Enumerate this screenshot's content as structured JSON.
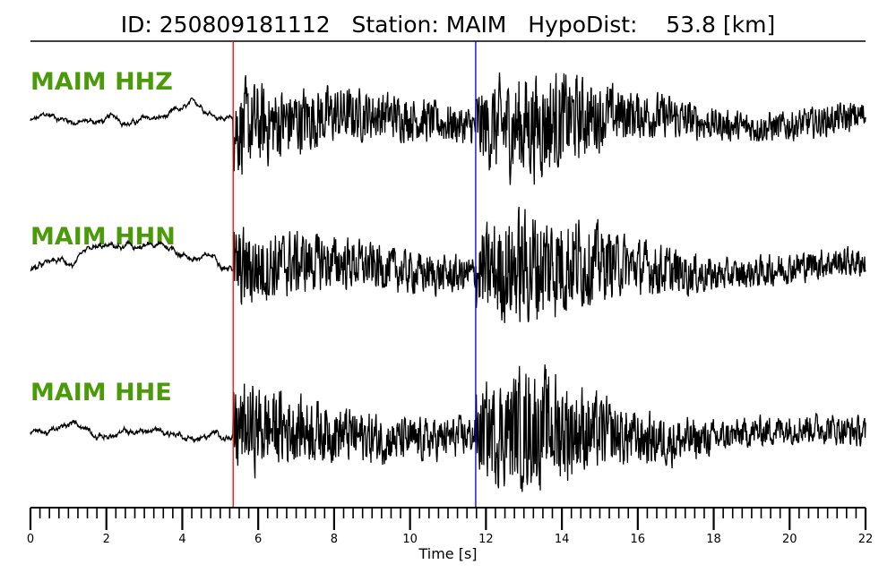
{
  "chart_data": {
    "type": "line",
    "title": {
      "id_label": "ID:",
      "id": "250809181112",
      "station_label": "Station:",
      "station": "MAIM",
      "dist_label": "HypoDist:",
      "dist": "53.8 [km]"
    },
    "xlabel": "Time [s]",
    "xlim": [
      0,
      22
    ],
    "xticks": [
      "0",
      "2",
      "4",
      "6",
      "8",
      "10",
      "12",
      "14",
      "16",
      "18",
      "20",
      "22"
    ],
    "minor_tick_step": 0.25,
    "grid": false,
    "label_color": "#4a9a0a",
    "traces": [
      {
        "name": "MAIM HHZ",
        "pre_amp": 0.12,
        "p_amp": 0.7,
        "s_amp": 0.9
      },
      {
        "name": "MAIM HHN",
        "pre_amp": 0.15,
        "p_amp": 0.6,
        "s_amp": 1.0
      },
      {
        "name": "MAIM HHE",
        "pre_amp": 0.15,
        "p_amp": 0.7,
        "s_amp": 1.0
      }
    ],
    "picks": [
      {
        "phase": "P",
        "time": 5.34,
        "color": "#ff0000"
      },
      {
        "phase": "S",
        "time": 11.73,
        "color": "#0000cc"
      }
    ]
  }
}
